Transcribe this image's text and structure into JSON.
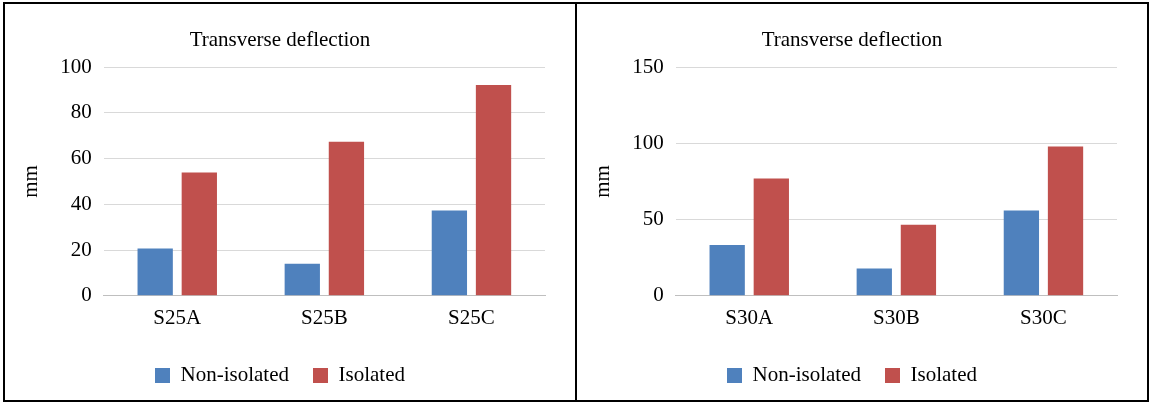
{
  "chart_data": [
    {
      "type": "bar",
      "title": "Transverse deflection",
      "ylabel": "mm",
      "categories": [
        "S25A",
        "S25B",
        "S25C"
      ],
      "series": [
        {
          "name": "Non-isolated",
          "color": "#4f81bd",
          "values": [
            20.7,
            14,
            37.3
          ]
        },
        {
          "name": "Isolated",
          "color": "#c0504d",
          "values": [
            53.9,
            67.4,
            92.2
          ]
        }
      ],
      "ylim": [
        0,
        100
      ],
      "yticks": [
        0,
        20,
        40,
        60,
        80,
        100
      ],
      "grid": "y",
      "legend": "bottom"
    },
    {
      "type": "bar",
      "title": "Transverse deflection",
      "ylabel": "mm",
      "categories": [
        "S30A",
        "S30B",
        "S30C"
      ],
      "series": [
        {
          "name": "Non-isolated",
          "color": "#4f81bd",
          "values": [
            33.4,
            17.9,
            55.9
          ]
        },
        {
          "name": "Isolated",
          "color": "#c0504d",
          "values": [
            76.9,
            46.6,
            97.9
          ]
        }
      ],
      "ylim": [
        0,
        150
      ],
      "yticks": [
        0,
        50,
        100,
        150
      ],
      "grid": "y",
      "legend": "bottom"
    }
  ]
}
